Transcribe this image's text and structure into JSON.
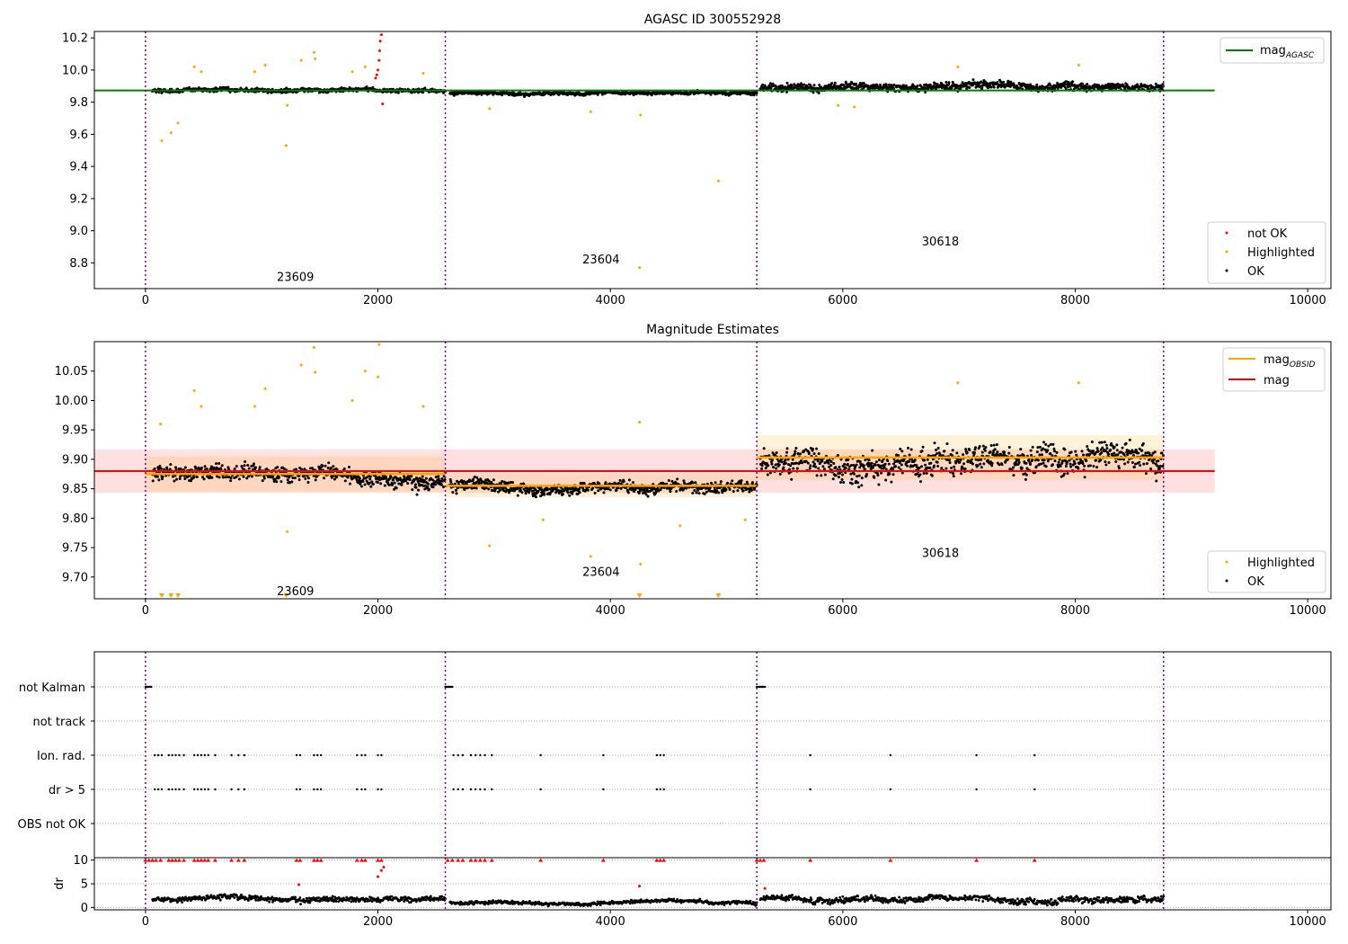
{
  "figure": {
    "main_title": "AGASC ID 300552928",
    "legend1": {
      "mag_line": "mag",
      "mag_sub": "AGASC",
      "not_ok": "not OK",
      "highlighted": "Highlighted",
      "ok": "OK"
    },
    "legend2": {
      "mag_obsid": "mag",
      "mag_obsid_sub": "OBSID",
      "mag": "mag",
      "highlighted": "Highlighted",
      "ok": "OK"
    },
    "flags": [
      "not Kalman",
      "not track",
      "Ion. rad.",
      "dr > 5",
      "OBS not OK"
    ],
    "dr_ylabel": "dr",
    "colors": {
      "ok": "#000000",
      "highlighted": "#ffa500",
      "not_ok": "#ff0000",
      "agasc": "#008000",
      "obsid": "#ffa500",
      "mag": "#ff0000",
      "vline": "#800080"
    }
  },
  "chart_data": [
    {
      "type": "scatter",
      "title": "AGASC ID 300552928",
      "xlim": [
        -440,
        10200
      ],
      "ylim": [
        8.64,
        10.24
      ],
      "xticks": [
        0,
        2000,
        4000,
        6000,
        8000,
        10000
      ],
      "yticks": [
        8.8,
        9.0,
        9.2,
        9.4,
        9.6,
        9.8,
        10.0,
        10.2
      ],
      "mag_agasc": 9.873,
      "obsid_boundaries": [
        0,
        2580,
        5260,
        8760
      ],
      "obsid_labels": [
        {
          "text": "23609",
          "x": 1290,
          "y": 8.71
        },
        {
          "text": "23604",
          "x": 3920,
          "y": 8.82
        },
        {
          "text": "30618",
          "x": 6840,
          "y": 8.93
        }
      ],
      "series": [
        {
          "name": "not OK",
          "points": [
            [
              1980,
              9.95
            ],
            [
              1990,
              9.97
            ],
            [
              2000,
              10.0
            ],
            [
              2010,
              10.06
            ],
            [
              2015,
              10.12
            ],
            [
              2020,
              10.18
            ],
            [
              2030,
              10.22
            ],
            [
              2040,
              9.79
            ]
          ]
        },
        {
          "name": "Highlighted",
          "points": [
            [
              140,
              9.56
            ],
            [
              220,
              9.61
            ],
            [
              280,
              9.67
            ],
            [
              1210,
              9.53
            ],
            [
              1220,
              9.78
            ],
            [
              2960,
              9.76
            ],
            [
              3830,
              9.74
            ],
            [
              4250,
              8.77
            ],
            [
              4260,
              9.72
            ],
            [
              4930,
              9.31
            ],
            [
              420,
              10.02
            ],
            [
              480,
              9.99
            ],
            [
              940,
              9.99
            ],
            [
              1030,
              10.03
            ],
            [
              1340,
              10.06
            ],
            [
              1450,
              10.11
            ],
            [
              1460,
              10.07
            ],
            [
              1780,
              9.99
            ],
            [
              1890,
              10.02
            ],
            [
              2390,
              9.98
            ],
            [
              8030,
              10.03
            ],
            [
              6990,
              10.02
            ],
            [
              5960,
              9.78
            ],
            [
              6100,
              9.77
            ]
          ]
        },
        {
          "name": "OK",
          "segments": [
            {
              "x_start": 60,
              "x_end": 2580,
              "base": 9.873,
              "amp": 0.018
            },
            {
              "x_start": 2620,
              "x_end": 5260,
              "base": 9.855,
              "amp": 0.015
            },
            {
              "x_start": 5290,
              "x_end": 8760,
              "base": 9.9,
              "amp": 0.035
            }
          ]
        }
      ]
    },
    {
      "type": "scatter",
      "title": "Magnitude Estimates",
      "xlim": [
        -440,
        10200
      ],
      "ylim": [
        9.663,
        10.1
      ],
      "xticks": [
        0,
        2000,
        4000,
        6000,
        8000,
        10000
      ],
      "yticks": [
        9.7,
        9.75,
        9.8,
        9.85,
        9.9,
        9.95,
        10.0,
        10.05
      ],
      "mag": 9.88,
      "mag_band": [
        9.843,
        9.917
      ],
      "mag_obsid": [
        {
          "x_start": 0,
          "x_end": 2580,
          "value": 9.875,
          "band": [
            9.845,
            9.905
          ]
        },
        {
          "x_start": 2580,
          "x_end": 5260,
          "value": 9.855,
          "band": [
            9.835,
            9.875
          ]
        },
        {
          "x_start": 5260,
          "x_end": 8760,
          "value": 9.903,
          "band": [
            9.865,
            9.941
          ]
        }
      ],
      "obsid_labels": [
        {
          "text": "23609",
          "x": 1290,
          "y": 9.675
        },
        {
          "text": "23604",
          "x": 3920,
          "y": 9.708
        },
        {
          "text": "30618",
          "x": 6840,
          "y": 9.74
        }
      ],
      "series": [
        {
          "name": "Highlighted",
          "points": [
            [
              1220,
              9.777
            ],
            [
              2960,
              9.753
            ],
            [
              3830,
              9.735
            ],
            [
              4260,
              9.722
            ],
            [
              4600,
              9.787
            ],
            [
              5160,
              9.797
            ],
            [
              3420,
              9.797
            ],
            [
              420,
              10.017
            ],
            [
              480,
              9.99
            ],
            [
              940,
              9.99
            ],
            [
              1030,
              10.02
            ],
            [
              1340,
              10.06
            ],
            [
              1450,
              10.09
            ],
            [
              1460,
              10.048
            ],
            [
              1780,
              10.0
            ],
            [
              1890,
              10.05
            ],
            [
              2000,
              10.04
            ],
            [
              2010,
              10.095
            ],
            [
              2390,
              9.99
            ],
            [
              6990,
              10.03
            ],
            [
              8030,
              10.03
            ],
            [
              4250,
              9.963
            ],
            [
              130,
              9.96
            ]
          ]
        },
        {
          "name": "OK",
          "segments": [
            {
              "x_start": 60,
              "x_end": 2580,
              "base": 9.873,
              "amp": 0.018
            },
            {
              "x_start": 2620,
              "x_end": 5260,
              "base": 9.855,
              "amp": 0.015
            },
            {
              "x_start": 5290,
              "x_end": 8760,
              "base": 9.9,
              "amp": 0.035
            }
          ]
        }
      ],
      "offscale_low_x": [
        140,
        220,
        280,
        1210,
        4250,
        4930
      ]
    },
    {
      "type": "scatter",
      "title": "",
      "categories": [
        "not Kalman",
        "not track",
        "Ion. rad.",
        "dr > 5",
        "OBS not OK"
      ],
      "flag_x": {
        "not Kalman": [
          0,
          10,
          20,
          30,
          40,
          50,
          2580,
          2590,
          2600,
          2610,
          2620,
          2630,
          2640,
          5260,
          5270,
          5280,
          5290,
          5300,
          5310,
          5320,
          5330
        ],
        "not track": [],
        "Ion. rad.": [
          80,
          110,
          140,
          200,
          230,
          260,
          290,
          330,
          420,
          450,
          480,
          510,
          540,
          600,
          740,
          800,
          850,
          1300,
          1330,
          1450,
          1480,
          1510,
          1820,
          1860,
          1890,
          2000,
          2030,
          2650,
          2690,
          2730,
          2800,
          2840,
          2880,
          2920,
          2980,
          3400,
          3940,
          4400,
          4430,
          4460,
          5720,
          6410,
          7150,
          7650
        ],
        "dr > 5": [
          80,
          110,
          140,
          200,
          230,
          260,
          290,
          330,
          420,
          450,
          480,
          510,
          540,
          600,
          740,
          800,
          850,
          1300,
          1330,
          1450,
          1480,
          1510,
          1820,
          1860,
          1890,
          2000,
          2030,
          2650,
          2690,
          2730,
          2800,
          2840,
          2880,
          2920,
          2980,
          3400,
          3940,
          4400,
          4430,
          4460,
          5720,
          6410,
          7150,
          7650
        ],
        "OBS not OK": []
      }
    },
    {
      "type": "scatter",
      "title": "",
      "ylabel": "dr",
      "xlim": [
        -440,
        10200
      ],
      "ylim": [
        -0.5,
        10.5
      ],
      "xticks": [
        0,
        2000,
        4000,
        6000,
        8000,
        10000
      ],
      "yticks": [
        0,
        5,
        10
      ],
      "clipped_at_10_x": [
        0,
        30,
        60,
        90,
        130,
        200,
        230,
        260,
        290,
        330,
        420,
        450,
        480,
        510,
        540,
        600,
        740,
        800,
        850,
        1300,
        1330,
        1450,
        1480,
        1510,
        1820,
        1860,
        1890,
        2000,
        2030,
        2600,
        2640,
        2690,
        2730,
        2800,
        2840,
        2880,
        2920,
        2980,
        3400,
        3940,
        4400,
        4430,
        4460,
        5260,
        5290,
        5320,
        5720,
        6410,
        7150,
        7650
      ],
      "segments": [
        {
          "x_start": 60,
          "x_end": 2580,
          "base": 1.8,
          "amp": 0.9
        },
        {
          "x_start": 2620,
          "x_end": 5260,
          "base": 1.0,
          "amp": 0.6
        },
        {
          "x_start": 5290,
          "x_end": 8760,
          "base": 1.7,
          "amp": 1.1
        }
      ],
      "high_points": [
        [
          1320,
          4.8
        ],
        [
          2000,
          6.5
        ],
        [
          2030,
          7.8
        ],
        [
          2050,
          8.5
        ],
        [
          4250,
          4.5
        ],
        [
          5330,
          4.0
        ]
      ]
    }
  ]
}
